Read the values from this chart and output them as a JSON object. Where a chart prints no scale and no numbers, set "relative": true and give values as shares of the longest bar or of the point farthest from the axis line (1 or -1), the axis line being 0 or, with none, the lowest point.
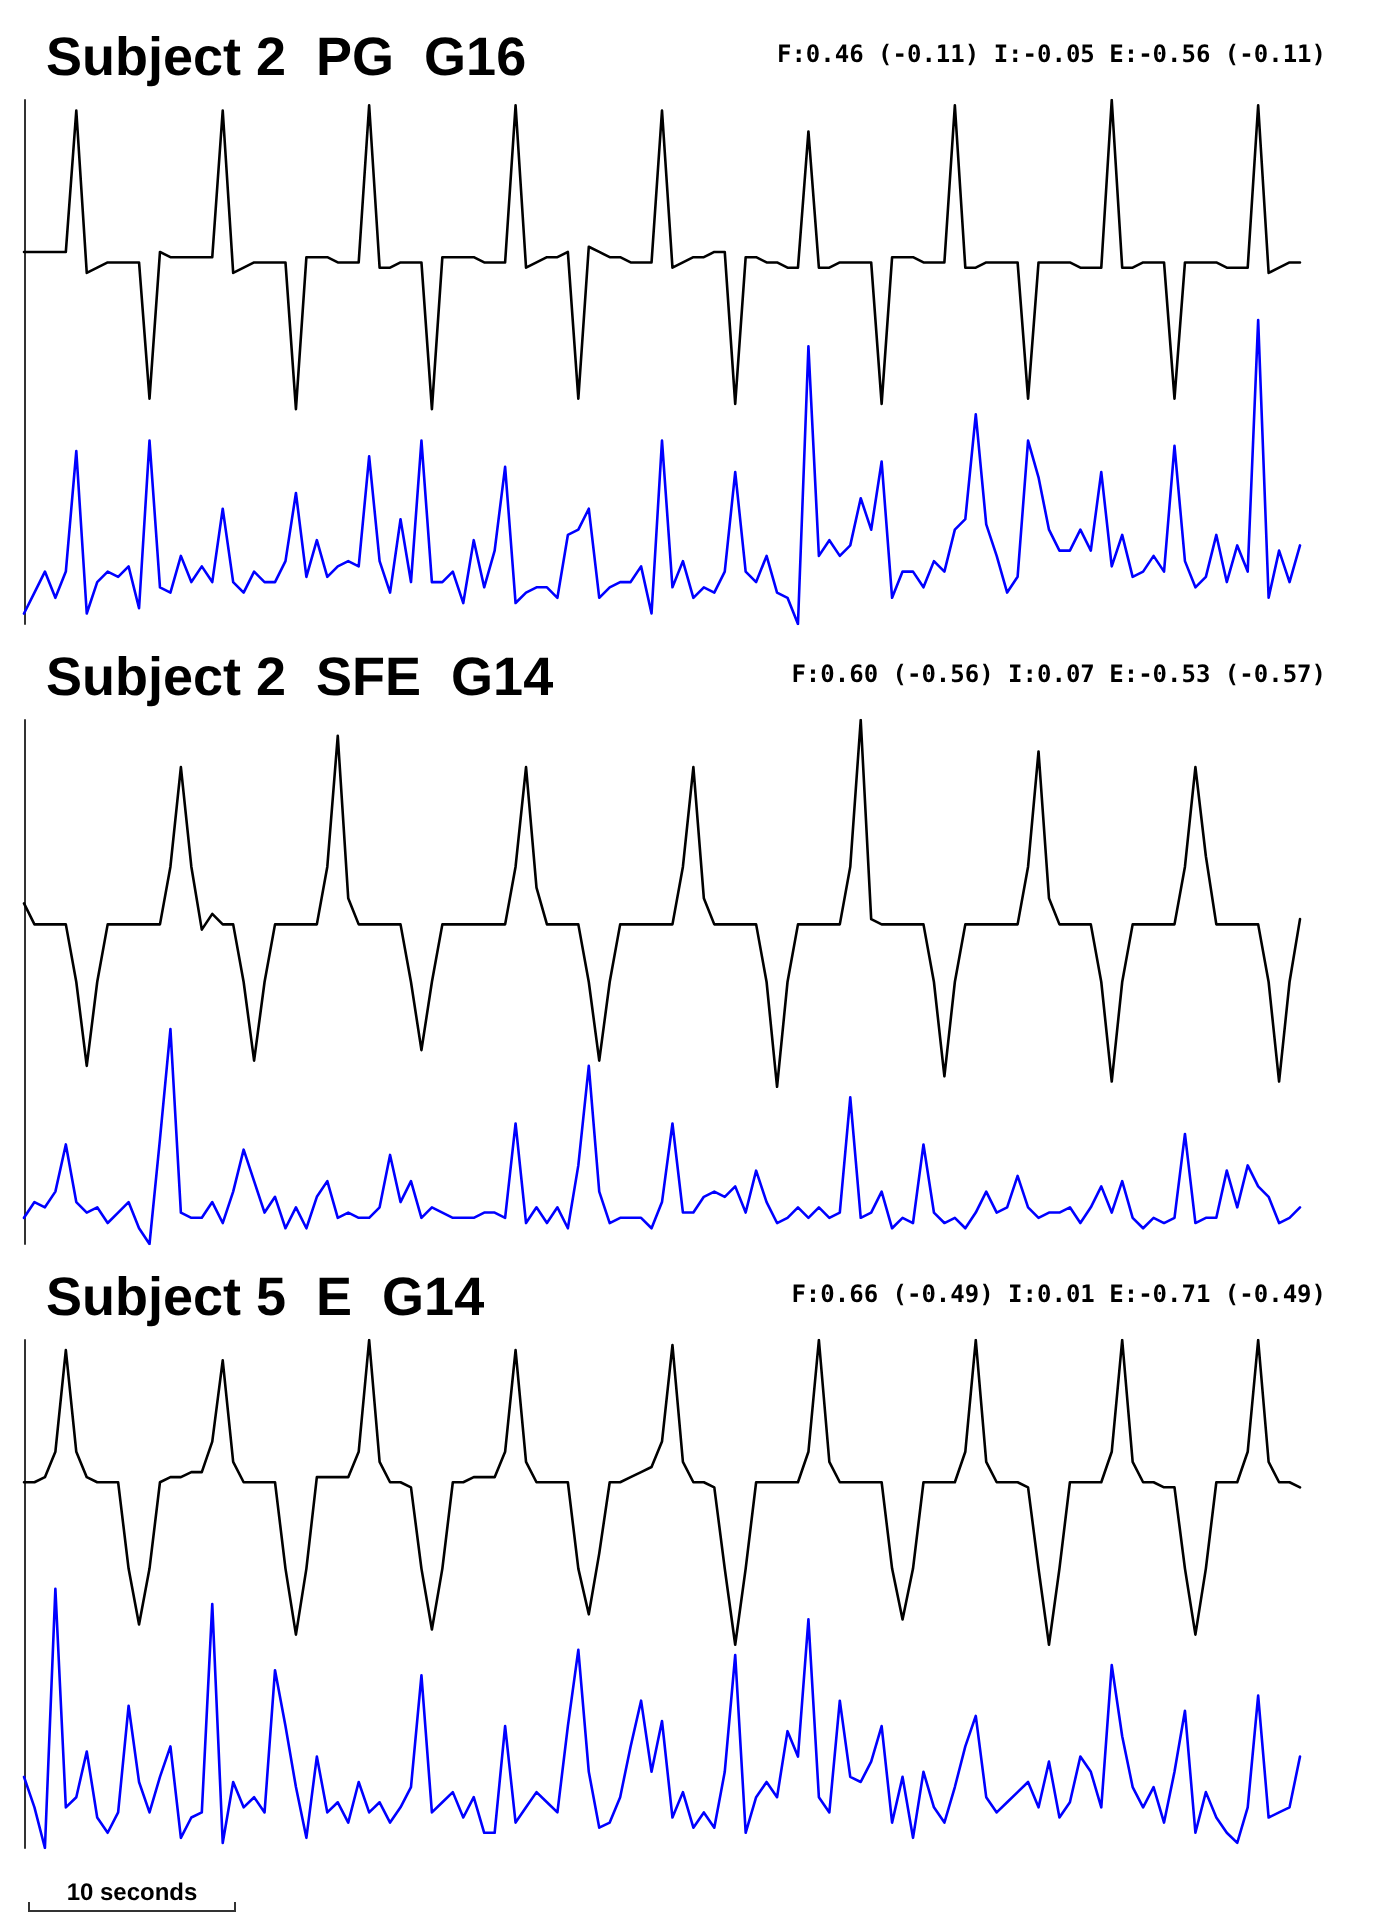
{
  "chart_data": [
    {
      "type": "line",
      "title": "Subject 2  PG  G16",
      "subtitle": "F:0.46 (-0.11) I:-0.05 E:-0.56 (-0.11)",
      "relative": true,
      "tick_labels": false,
      "grid": false,
      "categories": [
        null,
        null,
        null,
        null,
        null,
        null,
        null,
        null,
        null,
        null,
        null,
        null,
        null,
        null,
        null,
        null,
        null,
        null,
        null,
        null,
        null,
        null,
        null,
        null,
        null,
        null,
        null,
        null,
        null,
        null,
        null,
        null,
        null,
        null,
        null,
        null,
        null,
        null,
        null,
        null,
        null,
        null,
        null,
        null,
        null,
        null,
        null,
        null,
        null,
        null,
        null,
        null,
        null,
        null,
        null,
        null,
        null,
        null,
        null,
        null,
        null,
        null,
        null,
        null,
        null,
        null,
        null,
        null,
        null,
        null,
        null,
        null,
        null,
        null,
        null,
        null,
        null,
        null,
        null,
        null,
        null,
        null,
        null,
        null,
        null,
        null,
        null,
        null,
        null,
        null,
        null,
        null,
        null,
        null,
        null,
        null,
        null,
        null,
        null,
        null,
        null,
        null,
        null,
        null,
        null,
        null,
        null,
        null,
        null,
        null,
        null,
        null,
        null,
        null,
        null,
        null,
        null,
        null,
        null,
        null,
        null,
        null,
        null
      ],
      "series": [
        {
          "color": "#000000",
          "values": [
            0.71,
            0.71,
            0.71,
            0.71,
            0.71,
            0.98,
            0.67,
            0.68,
            0.69,
            0.69,
            0.69,
            0.69,
            0.43,
            0.71,
            0.7,
            0.7,
            0.7,
            0.7,
            0.7,
            0.98,
            0.67,
            0.68,
            0.69,
            0.69,
            0.69,
            0.69,
            0.41,
            0.7,
            0.7,
            0.7,
            0.69,
            0.69,
            0.69,
            0.99,
            0.68,
            0.68,
            0.69,
            0.69,
            0.69,
            0.41,
            0.7,
            0.7,
            0.7,
            0.7,
            0.69,
            0.69,
            0.69,
            0.99,
            0.68,
            0.69,
            0.7,
            0.7,
            0.71,
            0.43,
            0.72,
            0.71,
            0.7,
            0.7,
            0.69,
            0.69,
            0.69,
            0.98,
            0.68,
            0.69,
            0.7,
            0.7,
            0.71,
            0.71,
            0.42,
            0.7,
            0.7,
            0.69,
            0.69,
            0.68,
            0.68,
            0.94,
            0.68,
            0.68,
            0.69,
            0.69,
            0.69,
            0.69,
            0.42,
            0.7,
            0.7,
            0.7,
            0.69,
            0.69,
            0.69,
            0.99,
            0.68,
            0.68,
            0.69,
            0.69,
            0.69,
            0.69,
            0.43,
            0.69,
            0.69,
            0.69,
            0.69,
            0.68,
            0.68,
            0.68,
            1.0,
            0.68,
            0.68,
            0.69,
            0.69,
            0.69,
            0.43,
            0.69,
            0.69,
            0.69,
            0.69,
            0.68,
            0.68,
            0.68,
            0.99,
            0.67,
            0.68,
            0.69,
            0.69
          ]
        },
        {
          "color": "#0000ff",
          "values": [
            0.02,
            0.06,
            0.1,
            0.05,
            0.1,
            0.33,
            0.02,
            0.08,
            0.1,
            0.09,
            0.11,
            0.03,
            0.35,
            0.07,
            0.06,
            0.13,
            0.08,
            0.11,
            0.08,
            0.22,
            0.08,
            0.06,
            0.1,
            0.08,
            0.08,
            0.12,
            0.25,
            0.09,
            0.16,
            0.09,
            0.11,
            0.12,
            0.11,
            0.32,
            0.12,
            0.06,
            0.2,
            0.08,
            0.35,
            0.08,
            0.08,
            0.1,
            0.04,
            0.16,
            0.07,
            0.14,
            0.3,
            0.04,
            0.06,
            0.07,
            0.07,
            0.05,
            0.17,
            0.18,
            0.22,
            0.05,
            0.07,
            0.08,
            0.08,
            0.11,
            0.02,
            0.35,
            0.07,
            0.12,
            0.05,
            0.07,
            0.06,
            0.1,
            0.29,
            0.1,
            0.08,
            0.13,
            0.06,
            0.05,
            0.0,
            0.53,
            0.13,
            0.16,
            0.13,
            0.15,
            0.24,
            0.18,
            0.31,
            0.05,
            0.1,
            0.1,
            0.07,
            0.12,
            0.1,
            0.18,
            0.2,
            0.4,
            0.19,
            0.13,
            0.06,
            0.09,
            0.35,
            0.28,
            0.18,
            0.14,
            0.14,
            0.18,
            0.14,
            0.29,
            0.11,
            0.17,
            0.09,
            0.1,
            0.13,
            0.1,
            0.34,
            0.12,
            0.07,
            0.09,
            0.17,
            0.08,
            0.15,
            0.1,
            0.58,
            0.05,
            0.14,
            0.08,
            0.15
          ]
        }
      ]
    },
    {
      "type": "line",
      "title": "Subject 2  SFE  G14",
      "subtitle": "F:0.60 (-0.56) I:0.07 E:-0.53 (-0.57)",
      "relative": true,
      "tick_labels": false,
      "grid": false,
      "categories": [
        null,
        null,
        null,
        null,
        null,
        null,
        null,
        null,
        null,
        null,
        null,
        null,
        null,
        null,
        null,
        null,
        null,
        null,
        null,
        null,
        null,
        null,
        null,
        null,
        null,
        null,
        null,
        null,
        null,
        null,
        null,
        null,
        null,
        null,
        null,
        null,
        null,
        null,
        null,
        null,
        null,
        null,
        null,
        null,
        null,
        null,
        null,
        null,
        null,
        null,
        null,
        null,
        null,
        null,
        null,
        null,
        null,
        null,
        null,
        null,
        null,
        null,
        null,
        null,
        null,
        null,
        null,
        null,
        null,
        null,
        null,
        null,
        null,
        null,
        null,
        null,
        null,
        null,
        null,
        null,
        null,
        null,
        null,
        null,
        null,
        null,
        null,
        null,
        null,
        null,
        null,
        null,
        null,
        null,
        null,
        null,
        null,
        null,
        null,
        null,
        null,
        null,
        null,
        null,
        null,
        null,
        null,
        null,
        null,
        null,
        null,
        null,
        null,
        null,
        null,
        null,
        null,
        null,
        null,
        null,
        null,
        null,
        null
      ],
      "series": [
        {
          "color": "#000000",
          "values": [
            0.65,
            0.61,
            0.61,
            0.61,
            0.61,
            0.5,
            0.34,
            0.5,
            0.61,
            0.61,
            0.61,
            0.61,
            0.61,
            0.61,
            0.72,
            0.91,
            0.72,
            0.6,
            0.63,
            0.61,
            0.61,
            0.5,
            0.35,
            0.5,
            0.61,
            0.61,
            0.61,
            0.61,
            0.61,
            0.72,
            0.97,
            0.66,
            0.61,
            0.61,
            0.61,
            0.61,
            0.61,
            0.5,
            0.37,
            0.5,
            0.61,
            0.61,
            0.61,
            0.61,
            0.61,
            0.61,
            0.61,
            0.72,
            0.91,
            0.68,
            0.61,
            0.61,
            0.61,
            0.61,
            0.5,
            0.35,
            0.5,
            0.61,
            0.61,
            0.61,
            0.61,
            0.61,
            0.61,
            0.72,
            0.91,
            0.66,
            0.61,
            0.61,
            0.61,
            0.61,
            0.61,
            0.5,
            0.3,
            0.5,
            0.61,
            0.61,
            0.61,
            0.61,
            0.61,
            0.72,
            1.0,
            0.62,
            0.61,
            0.61,
            0.61,
            0.61,
            0.61,
            0.5,
            0.32,
            0.5,
            0.61,
            0.61,
            0.61,
            0.61,
            0.61,
            0.61,
            0.72,
            0.94,
            0.66,
            0.61,
            0.61,
            0.61,
            0.61,
            0.5,
            0.31,
            0.5,
            0.61,
            0.61,
            0.61,
            0.61,
            0.61,
            0.72,
            0.91,
            0.74,
            0.61,
            0.61,
            0.61,
            0.61,
            0.61,
            0.5,
            0.31,
            0.5,
            0.62
          ]
        },
        {
          "color": "#0000ff",
          "values": [
            0.05,
            0.08,
            0.07,
            0.1,
            0.19,
            0.08,
            0.06,
            0.07,
            0.04,
            0.06,
            0.08,
            0.03,
            0.0,
            0.2,
            0.41,
            0.06,
            0.05,
            0.05,
            0.08,
            0.04,
            0.1,
            0.18,
            0.12,
            0.06,
            0.09,
            0.03,
            0.07,
            0.03,
            0.09,
            0.12,
            0.05,
            0.06,
            0.05,
            0.05,
            0.07,
            0.17,
            0.08,
            0.12,
            0.05,
            0.07,
            0.06,
            0.05,
            0.05,
            0.05,
            0.06,
            0.06,
            0.05,
            0.23,
            0.04,
            0.07,
            0.04,
            0.07,
            0.03,
            0.15,
            0.34,
            0.1,
            0.04,
            0.05,
            0.05,
            0.05,
            0.03,
            0.08,
            0.23,
            0.06,
            0.06,
            0.09,
            0.1,
            0.09,
            0.11,
            0.06,
            0.14,
            0.08,
            0.04,
            0.05,
            0.07,
            0.05,
            0.07,
            0.05,
            0.06,
            0.28,
            0.05,
            0.06,
            0.1,
            0.03,
            0.05,
            0.04,
            0.19,
            0.06,
            0.04,
            0.05,
            0.03,
            0.06,
            0.1,
            0.06,
            0.07,
            0.13,
            0.07,
            0.05,
            0.06,
            0.06,
            0.07,
            0.04,
            0.07,
            0.11,
            0.06,
            0.12,
            0.05,
            0.03,
            0.05,
            0.04,
            0.05,
            0.21,
            0.04,
            0.05,
            0.05,
            0.14,
            0.07,
            0.15,
            0.11,
            0.09,
            0.04,
            0.05,
            0.07
          ]
        }
      ]
    },
    {
      "type": "line",
      "title": "Subject 5  E  G14",
      "subtitle": "F:0.66 (-0.49) I:0.01 E:-0.71 (-0.49)",
      "relative": true,
      "tick_labels": false,
      "grid": false,
      "annotations": [
        "10 seconds"
      ],
      "categories": [
        null,
        null,
        null,
        null,
        null,
        null,
        null,
        null,
        null,
        null,
        null,
        null,
        null,
        null,
        null,
        null,
        null,
        null,
        null,
        null,
        null,
        null,
        null,
        null,
        null,
        null,
        null,
        null,
        null,
        null,
        null,
        null,
        null,
        null,
        null,
        null,
        null,
        null,
        null,
        null,
        null,
        null,
        null,
        null,
        null,
        null,
        null,
        null,
        null,
        null,
        null,
        null,
        null,
        null,
        null,
        null,
        null,
        null,
        null,
        null,
        null,
        null,
        null,
        null,
        null,
        null,
        null,
        null,
        null,
        null,
        null,
        null,
        null,
        null,
        null,
        null,
        null,
        null,
        null,
        null,
        null,
        null,
        null,
        null,
        null,
        null,
        null,
        null,
        null,
        null,
        null,
        null,
        null,
        null,
        null,
        null,
        null,
        null,
        null,
        null,
        null,
        null,
        null,
        null,
        null,
        null,
        null,
        null,
        null,
        null,
        null,
        null,
        null,
        null,
        null,
        null,
        null,
        null,
        null,
        null,
        null,
        null,
        null
      ],
      "series": [
        {
          "color": "#000000",
          "values": [
            0.72,
            0.72,
            0.73,
            0.78,
            0.98,
            0.78,
            0.73,
            0.72,
            0.72,
            0.72,
            0.55,
            0.44,
            0.55,
            0.72,
            0.73,
            0.73,
            0.74,
            0.74,
            0.8,
            0.96,
            0.76,
            0.72,
            0.72,
            0.72,
            0.72,
            0.55,
            0.42,
            0.55,
            0.73,
            0.73,
            0.73,
            0.73,
            0.78,
            1.0,
            0.76,
            0.72,
            0.72,
            0.71,
            0.55,
            0.43,
            0.55,
            0.72,
            0.72,
            0.73,
            0.73,
            0.73,
            0.78,
            0.98,
            0.76,
            0.72,
            0.72,
            0.72,
            0.72,
            0.55,
            0.46,
            0.58,
            0.72,
            0.72,
            0.73,
            0.74,
            0.75,
            0.8,
            0.99,
            0.76,
            0.72,
            0.72,
            0.71,
            0.55,
            0.4,
            0.55,
            0.72,
            0.72,
            0.72,
            0.72,
            0.72,
            0.78,
            1.0,
            0.76,
            0.72,
            0.72,
            0.72,
            0.72,
            0.72,
            0.55,
            0.45,
            0.55,
            0.72,
            0.72,
            0.72,
            0.72,
            0.78,
            1.0,
            0.76,
            0.72,
            0.72,
            0.72,
            0.71,
            0.55,
            0.4,
            0.55,
            0.72,
            0.72,
            0.72,
            0.72,
            0.78,
            1.0,
            0.76,
            0.72,
            0.72,
            0.71,
            0.71,
            0.55,
            0.42,
            0.55,
            0.72,
            0.72,
            0.72,
            0.78,
            1.0,
            0.76,
            0.72,
            0.72,
            0.71
          ]
        },
        {
          "color": "#0000ff",
          "values": [
            0.14,
            0.08,
            0.0,
            0.51,
            0.08,
            0.1,
            0.19,
            0.06,
            0.03,
            0.07,
            0.28,
            0.13,
            0.07,
            0.14,
            0.2,
            0.02,
            0.06,
            0.07,
            0.48,
            0.01,
            0.13,
            0.08,
            0.1,
            0.07,
            0.35,
            0.24,
            0.12,
            0.02,
            0.18,
            0.07,
            0.09,
            0.05,
            0.13,
            0.07,
            0.09,
            0.05,
            0.08,
            0.12,
            0.34,
            0.07,
            0.09,
            0.11,
            0.06,
            0.1,
            0.03,
            0.03,
            0.24,
            0.05,
            0.08,
            0.11,
            0.09,
            0.07,
            0.24,
            0.39,
            0.15,
            0.04,
            0.05,
            0.1,
            0.2,
            0.29,
            0.15,
            0.25,
            0.06,
            0.11,
            0.04,
            0.07,
            0.04,
            0.15,
            0.38,
            0.03,
            0.1,
            0.13,
            0.1,
            0.23,
            0.18,
            0.45,
            0.1,
            0.07,
            0.29,
            0.14,
            0.13,
            0.17,
            0.24,
            0.05,
            0.14,
            0.02,
            0.15,
            0.08,
            0.05,
            0.12,
            0.2,
            0.26,
            0.1,
            0.07,
            0.09,
            0.11,
            0.13,
            0.08,
            0.17,
            0.06,
            0.09,
            0.18,
            0.15,
            0.08,
            0.36,
            0.22,
            0.12,
            0.08,
            0.12,
            0.05,
            0.15,
            0.27,
            0.03,
            0.11,
            0.06,
            0.03,
            0.01,
            0.08,
            0.3,
            0.06,
            0.07,
            0.08,
            0.18
          ]
        }
      ]
    }
  ]
}
